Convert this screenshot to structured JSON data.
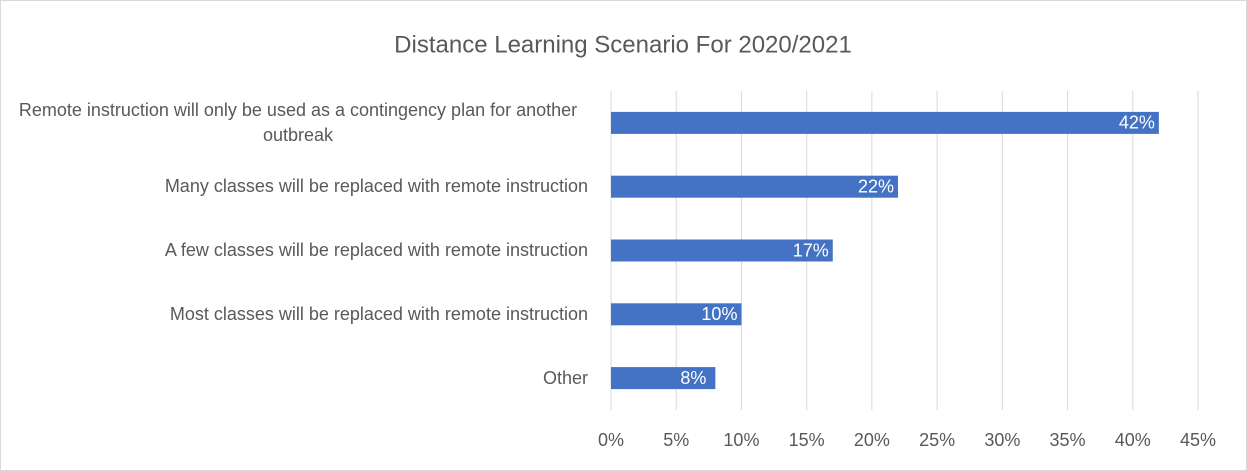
{
  "chart_data": {
    "type": "bar",
    "orientation": "horizontal",
    "title": "Distance Learning Scenario For 2020/2021",
    "categories": [
      "Remote instruction will only be used as a contingency plan for another outbreak",
      "Many classes will be replaced with remote instruction",
      "A few classes will be replaced with remote instruction",
      "Most classes will be replaced with remote instruction",
      "Other"
    ],
    "values": [
      42,
      22,
      17,
      10,
      8
    ],
    "value_labels": [
      "42%",
      "22%",
      "17%",
      "10%",
      "8%"
    ],
    "color": "#4472c4",
    "xlim": [
      0,
      45
    ],
    "xticks": [
      {
        "value": 0,
        "label": "0%"
      },
      {
        "value": 5,
        "label": "5%"
      },
      {
        "value": 10,
        "label": "10%"
      },
      {
        "value": 15,
        "label": "15%"
      },
      {
        "value": 20,
        "label": "20%"
      },
      {
        "value": 25,
        "label": "25%"
      },
      {
        "value": 30,
        "label": "30%"
      },
      {
        "value": 35,
        "label": "35%"
      },
      {
        "value": 40,
        "label": "40%"
      },
      {
        "value": 45,
        "label": "45%"
      }
    ],
    "grid": true
  }
}
